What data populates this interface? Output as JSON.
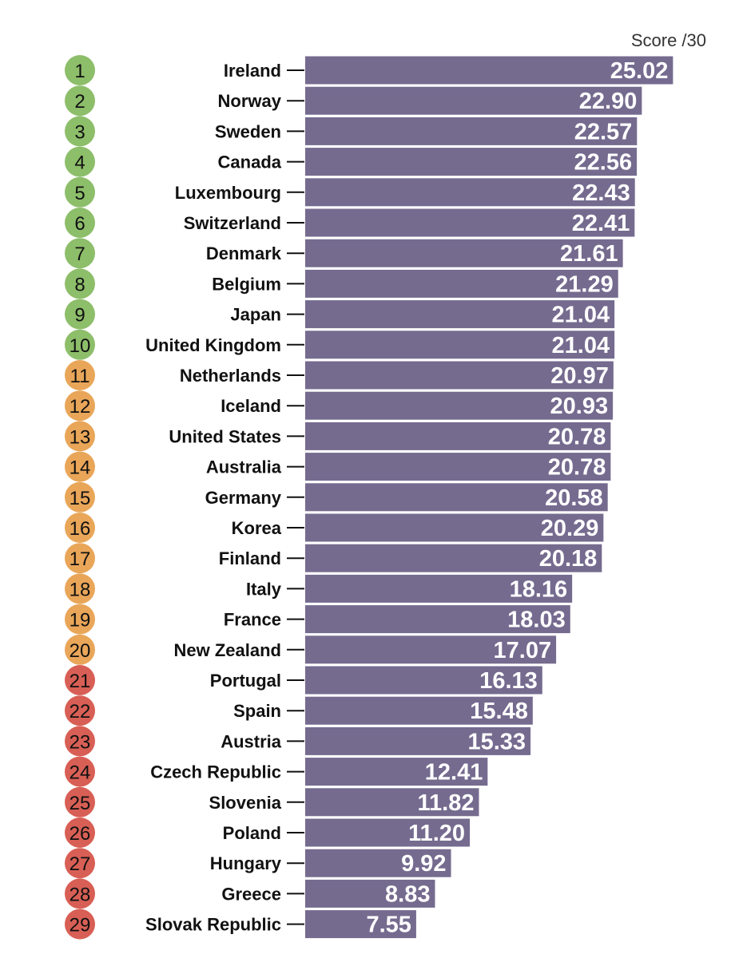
{
  "chart_data": {
    "type": "bar",
    "orientation": "horizontal",
    "title": "Score /30",
    "xlim": [
      0,
      30
    ],
    "grid": false,
    "legend": "none",
    "rank_colors": {
      "top": "#8dbe6a",
      "middle": "#e9a659",
      "bottom": "#d85f55"
    },
    "bar_color": "#756b8f",
    "rows": [
      {
        "rank": "1",
        "country": "Ireland",
        "value": 25.02,
        "label": "25.02",
        "tier": "top"
      },
      {
        "rank": "2",
        "country": "Norway",
        "value": 22.9,
        "label": "22.90",
        "tier": "top"
      },
      {
        "rank": "3",
        "country": "Sweden",
        "value": 22.57,
        "label": "22.57",
        "tier": "top"
      },
      {
        "rank": "4",
        "country": "Canada",
        "value": 22.56,
        "label": "22.56",
        "tier": "top"
      },
      {
        "rank": "5",
        "country": "Luxembourg",
        "value": 22.43,
        "label": "22.43",
        "tier": "top"
      },
      {
        "rank": "6",
        "country": "Switzerland",
        "value": 22.41,
        "label": "22.41",
        "tier": "top"
      },
      {
        "rank": "7",
        "country": "Denmark",
        "value": 21.61,
        "label": "21.61",
        "tier": "top"
      },
      {
        "rank": "8",
        "country": "Belgium",
        "value": 21.29,
        "label": "21.29",
        "tier": "top"
      },
      {
        "rank": "9",
        "country": "Japan",
        "value": 21.04,
        "label": "21.04",
        "tier": "top"
      },
      {
        "rank": "10",
        "country": "United Kingdom",
        "value": 21.04,
        "label": "21.04",
        "tier": "top"
      },
      {
        "rank": "11",
        "country": "Netherlands",
        "value": 20.97,
        "label": "20.97",
        "tier": "middle"
      },
      {
        "rank": "12",
        "country": "Iceland",
        "value": 20.93,
        "label": "20.93",
        "tier": "middle"
      },
      {
        "rank": "13",
        "country": "United States",
        "value": 20.78,
        "label": "20.78",
        "tier": "middle"
      },
      {
        "rank": "14",
        "country": "Australia",
        "value": 20.78,
        "label": "20.78",
        "tier": "middle"
      },
      {
        "rank": "15",
        "country": "Germany",
        "value": 20.58,
        "label": "20.58",
        "tier": "middle"
      },
      {
        "rank": "16",
        "country": "Korea",
        "value": 20.29,
        "label": "20.29",
        "tier": "middle"
      },
      {
        "rank": "17",
        "country": "Finland",
        "value": 20.18,
        "label": "20.18",
        "tier": "middle"
      },
      {
        "rank": "18",
        "country": "Italy",
        "value": 18.16,
        "label": "18.16",
        "tier": "middle"
      },
      {
        "rank": "19",
        "country": "France",
        "value": 18.03,
        "label": "18.03",
        "tier": "middle"
      },
      {
        "rank": "20",
        "country": "New Zealand",
        "value": 17.07,
        "label": "17.07",
        "tier": "middle"
      },
      {
        "rank": "21",
        "country": "Portugal",
        "value": 16.13,
        "label": "16.13",
        "tier": "bottom"
      },
      {
        "rank": "22",
        "country": "Spain",
        "value": 15.48,
        "label": "15.48",
        "tier": "bottom"
      },
      {
        "rank": "23",
        "country": "Austria",
        "value": 15.33,
        "label": "15.33",
        "tier": "bottom"
      },
      {
        "rank": "24",
        "country": "Czech Republic",
        "value": 12.41,
        "label": "12.41",
        "tier": "bottom"
      },
      {
        "rank": "25",
        "country": "Slovenia",
        "value": 11.82,
        "label": "11.82",
        "tier": "bottom"
      },
      {
        "rank": "26",
        "country": "Poland",
        "value": 11.2,
        "label": "11.20",
        "tier": "bottom"
      },
      {
        "rank": "27",
        "country": "Hungary",
        "value": 9.92,
        "label": "9.92",
        "tier": "bottom"
      },
      {
        "rank": "28",
        "country": "Greece",
        "value": 8.83,
        "label": "8.83",
        "tier": "bottom"
      },
      {
        "rank": "29",
        "country": "Slovak Republic",
        "value": 7.55,
        "label": "7.55",
        "tier": "bottom"
      }
    ]
  }
}
